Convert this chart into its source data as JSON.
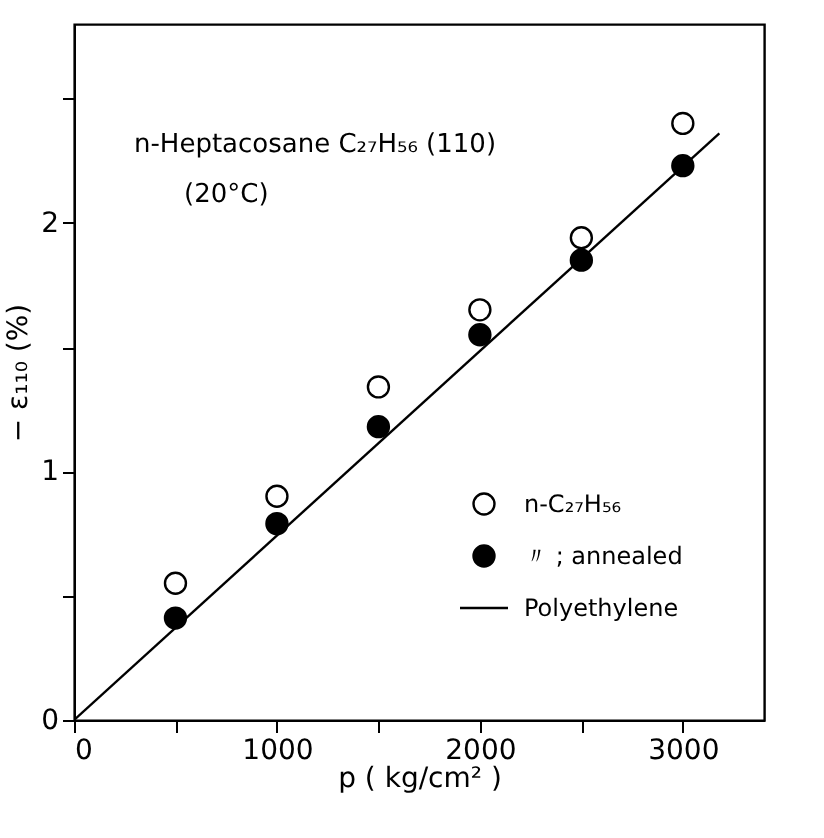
{
  "chart_data": {
    "type": "scatter",
    "xlabel": "p ( kg/cm² )",
    "ylabel": "− ε₁₁₀ (%)",
    "annotations": [
      "n-Heptacosane C₂₇H₅₆ (110)",
      "(20°C)"
    ],
    "xlim": [
      0,
      3400
    ],
    "ylim": [
      0,
      2.8
    ],
    "xticks": [
      0,
      {
        "value": 500,
        "label": null
      },
      1000,
      {
        "value": 1500,
        "label": null
      },
      2000,
      {
        "value": 2500,
        "label": null
      },
      3000
    ],
    "yticks": [
      0,
      {
        "value": 0.5,
        "label": null
      },
      1,
      {
        "value": 1.5,
        "label": null
      },
      2,
      {
        "value": 2.5,
        "label": null
      }
    ],
    "legend": "right",
    "grid": false,
    "series": [
      {
        "name": "n-C₂₇H₅₆",
        "marker": "circle",
        "color": "#ffffff",
        "x": [
          500,
          1000,
          1500,
          2000,
          2500,
          3000
        ],
        "values": [
          0.55,
          0.9,
          1.34,
          1.65,
          1.94,
          2.4
        ]
      },
      {
        "name": "〃 ; annealed",
        "marker": "circle",
        "color": "#000000",
        "x": [
          500,
          1000,
          1500,
          2000,
          2500,
          3000
        ],
        "values": [
          0.41,
          0.79,
          1.18,
          1.55,
          1.85,
          2.23
        ]
      },
      {
        "name": "Polyethylene",
        "type": "line",
        "marker": "none",
        "line_style": "solid",
        "color": "#000000",
        "x": [
          0,
          3180
        ],
        "values": [
          0,
          2.36
        ]
      }
    ]
  }
}
